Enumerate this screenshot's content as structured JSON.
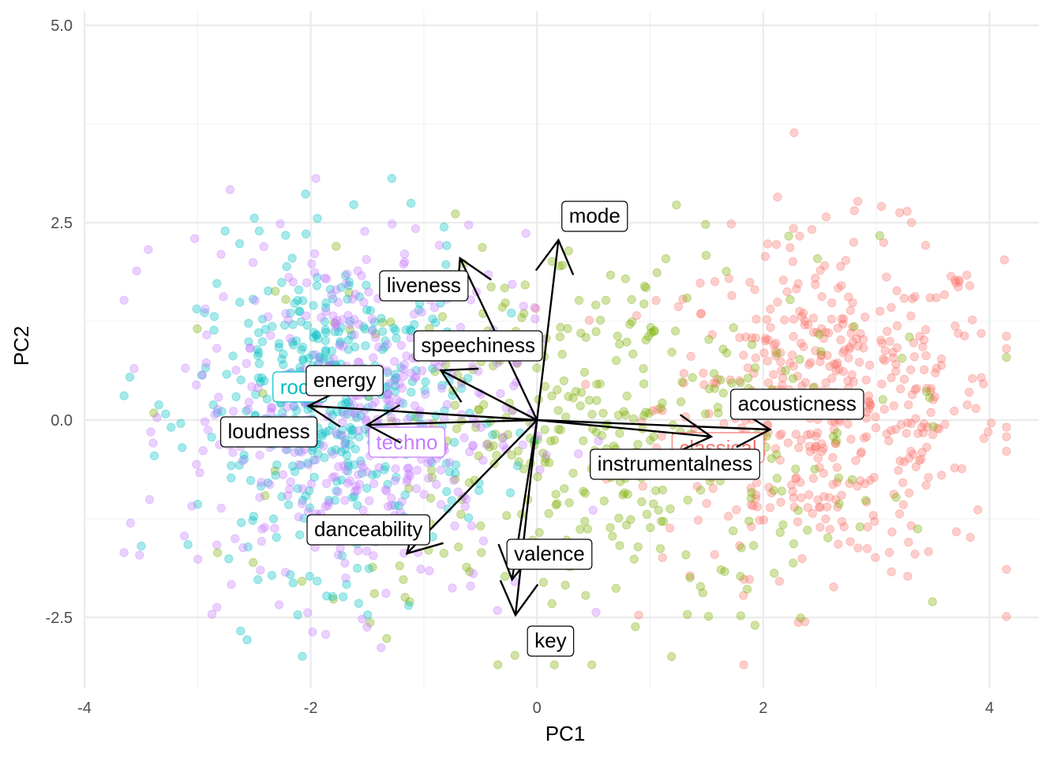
{
  "chart_data": {
    "type": "scatter",
    "title": "",
    "xlabel": "PC1",
    "ylabel": "PC2",
    "xlim": [
      -4.2,
      4.35
    ],
    "ylim": [
      -3.4,
      5.15
    ],
    "xticks": [
      -4,
      -2,
      0,
      2,
      4
    ],
    "xtick_labels": [
      "-4",
      "-2",
      "0",
      "2",
      "4"
    ],
    "yticks": [
      -2.5,
      0.0,
      2.5,
      5.0
    ],
    "ytick_labels": [
      "-2.5",
      "0.0",
      "2.5",
      "5.0"
    ],
    "grid": true,
    "legend": "none",
    "point_opacity": 0.35,
    "series": [
      {
        "name": "classical",
        "color": "#F8766D",
        "count": 500,
        "center": [
          2.6,
          0.2
        ],
        "spread": [
          0.75,
          1.05
        ],
        "label": "classical",
        "label_pos": [
          1.6,
          -0.35
        ]
      },
      {
        "name": "",
        "color": "#7CAE00",
        "count": 420,
        "center": [
          0.4,
          -0.2
        ],
        "spread": [
          1.3,
          1.25
        ],
        "label": "",
        "label_pos": null
      },
      {
        "name": "rock",
        "color": "#00BFC4",
        "count": 440,
        "center": [
          -1.8,
          0.15
        ],
        "spread": [
          0.6,
          1.0
        ],
        "label": "rock",
        "label_pos": [
          -2.1,
          0.42
        ]
      },
      {
        "name": "techno",
        "color": "#C77CFF",
        "count": 440,
        "center": [
          -1.6,
          0.05
        ],
        "spread": [
          0.75,
          1.15
        ],
        "label": "techno",
        "label_pos": [
          -1.15,
          -0.28
        ]
      }
    ],
    "loadings": [
      {
        "name": "mode",
        "end": [
          0.19,
          2.28
        ],
        "label": "mode",
        "label_pos": [
          0.51,
          2.59
        ]
      },
      {
        "name": "liveness",
        "end": [
          -0.68,
          2.05
        ],
        "label": "liveness",
        "label_pos": [
          -1.0,
          1.71
        ]
      },
      {
        "name": "speechiness",
        "end": [
          -0.85,
          0.63
        ],
        "label": "speechiness",
        "label_pos": [
          -0.52,
          0.95
        ]
      },
      {
        "name": "energy",
        "end": [
          -2.02,
          0.18
        ],
        "label": "energy",
        "label_pos": [
          -1.7,
          0.51
        ]
      },
      {
        "name": "loudness",
        "end": [
          -1.5,
          -0.06
        ],
        "label": "loudness",
        "label_pos": [
          -2.37,
          -0.14
        ]
      },
      {
        "name": "acousticness",
        "end": [
          2.06,
          -0.12
        ],
        "label": "acousticness",
        "label_pos": [
          2.3,
          0.21
        ]
      },
      {
        "name": "instrumentalness",
        "end": [
          1.54,
          -0.21
        ],
        "label": "instrumentalness",
        "label_pos": [
          1.22,
          -0.55
        ]
      },
      {
        "name": "danceability",
        "end": [
          -1.15,
          -1.69
        ],
        "label": "danceability",
        "label_pos": [
          -1.49,
          -1.38
        ]
      },
      {
        "name": "valence",
        "end": [
          -0.22,
          -2.02
        ],
        "label": "valence",
        "label_pos": [
          0.11,
          -1.69
        ]
      },
      {
        "name": "key",
        "end": [
          -0.19,
          -2.47
        ],
        "label": "key",
        "label_pos": [
          0.12,
          -2.79
        ]
      }
    ]
  }
}
